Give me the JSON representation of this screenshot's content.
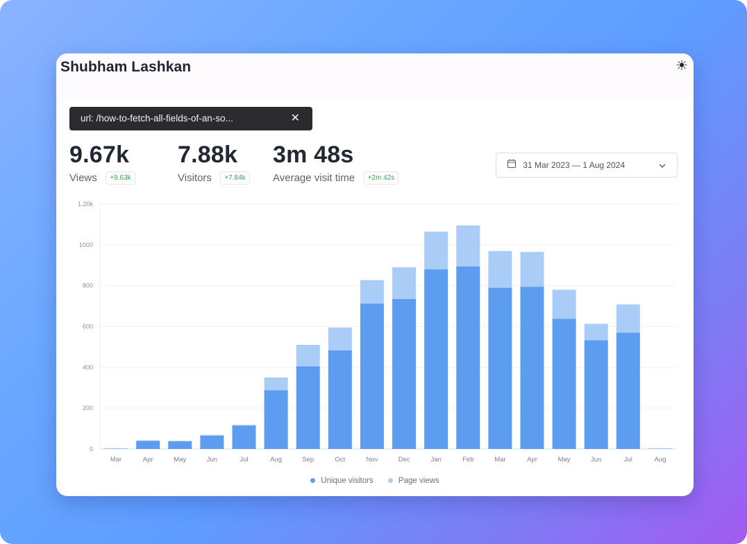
{
  "header": {
    "title": "Shubham Lashkan",
    "theme_icon": "☀"
  },
  "filter": {
    "label": "url: /how-to-fetch-all-fields-of-an-so...",
    "close": "✕"
  },
  "stats": [
    {
      "value": "9.67k",
      "label": "Views",
      "delta": "+9.63k"
    },
    {
      "value": "7.88k",
      "label": "Visitors",
      "delta": "+7.84k"
    },
    {
      "value": "3m 48s",
      "label": "Average visit time",
      "delta": "+2m 42s"
    }
  ],
  "date_range": {
    "label": "31 Mar 2023 — 1 Aug 2024"
  },
  "colors": {
    "unique": "#5d9df0",
    "views": "#a9cdf7",
    "text_dark": "#222833",
    "delta": "#39a05a"
  },
  "chart_data": {
    "type": "bar",
    "stacked": true,
    "categories": [
      "Mar",
      "Apr",
      "May",
      "Jun",
      "Jul",
      "Aug",
      "Sep",
      "Oct",
      "Nov",
      "Dec",
      "Jan",
      "Feb",
      "Mar",
      "Apr",
      "May",
      "Jun",
      "Jul",
      "Aug"
    ],
    "series": [
      {
        "name": "Unique visitors",
        "values": [
          2,
          40,
          38,
          65,
          115,
          288,
          405,
          483,
          712,
          735,
          880,
          895,
          790,
          795,
          638,
          533,
          570,
          2
        ]
      },
      {
        "name": "Page views",
        "values": [
          0,
          2,
          2,
          4,
          3,
          62,
          105,
          112,
          115,
          155,
          185,
          200,
          180,
          170,
          142,
          80,
          138,
          0
        ]
      }
    ],
    "ylim": [
      0,
      1200
    ],
    "yticks": [
      0,
      200,
      400,
      600,
      800,
      1000,
      1200
    ],
    "ytick_labels": [
      "0",
      "200",
      "400",
      "600",
      "800",
      "1000",
      "1.20k"
    ],
    "grid": true,
    "legend": "bottom-center"
  },
  "legend": {
    "unique": "Unique visitors",
    "views": "Page views"
  }
}
